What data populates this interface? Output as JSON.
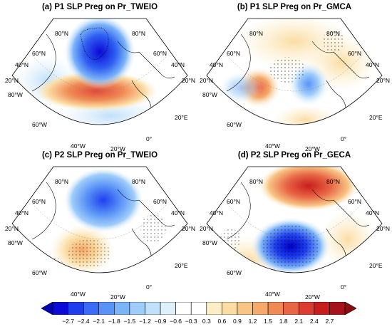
{
  "panels": [
    {
      "title": "(a) P1 SLP Preg on Pr_TWEIO"
    },
    {
      "title": "(b) P1 SLP Preg on Pr_GMCA"
    },
    {
      "title": "(c) P2 SLP Preg on Pr_TWEIO"
    },
    {
      "title": "(d) P2 SLP Preg on Pr_GECA"
    }
  ],
  "map_labels": {
    "lat_80n": "80°N",
    "lat_60n": "60°N",
    "lat_40n": "40°N",
    "lat_20n": "20°N",
    "lon_80w": "80°W",
    "lon_60w": "60°W",
    "lon_40w": "40°W",
    "lon_20w": "20°W",
    "lon_0": "0°",
    "lon_20e": "20°E"
  },
  "colorbar": {
    "ticks": [
      "−2.7",
      "−2.4",
      "−2.1",
      "−1.8",
      "−1.5",
      "−1.2",
      "−0.9",
      "−0.6",
      "−0.3",
      "0.3",
      "0.6",
      "0.9",
      "1.2",
      "1.5",
      "1.8",
      "2.1",
      "2.4",
      "2.7"
    ],
    "colors": [
      "#0b0bd9",
      "#1f3fef",
      "#3a6cf5",
      "#5a93f7",
      "#7cb4f8",
      "#9fcdf9",
      "#c1e0fa",
      "#dff0fb",
      "#ffffff",
      "#ffffff",
      "#fdeec8",
      "#fbdca3",
      "#f8c585",
      "#f5a96a",
      "#f08a55",
      "#e86645",
      "#dc3d33",
      "#c91d1d",
      "#a8121c"
    ],
    "low_end": "#0000b5",
    "high_end": "#8b0d0d"
  }
}
